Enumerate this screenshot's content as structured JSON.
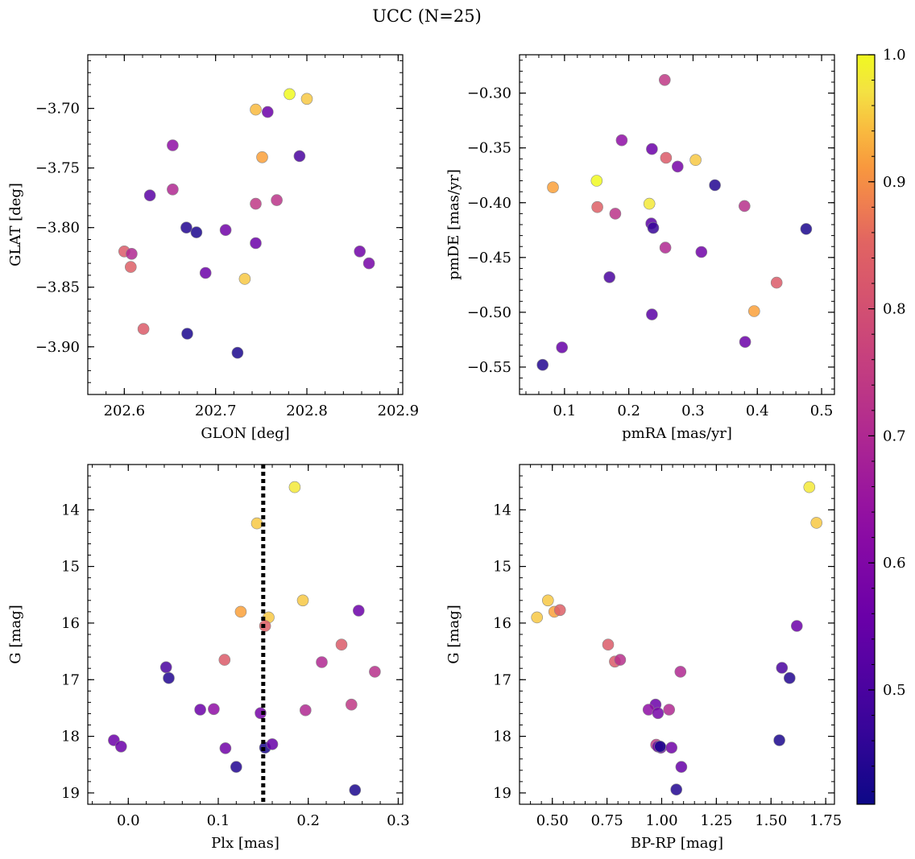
{
  "chart_data": [
    {
      "type": "scatter",
      "title": "UCC (N=25)",
      "xlabel": "GLON [deg]",
      "ylabel": "GLAT [deg]",
      "xlim": [
        202.56,
        202.905
      ],
      "ylim": [
        -3.94,
        -3.655
      ],
      "xticks": [
        202.6,
        202.7,
        202.8,
        202.9
      ],
      "xtick_labels": [
        "202.6",
        "202.7",
        "202.8",
        "202.9"
      ],
      "yticks": [
        -3.7,
        -3.75,
        -3.8,
        -3.85,
        -3.9
      ],
      "ytick_labels": [
        "−3.70",
        "−3.75",
        "−3.80",
        "−3.85",
        "−3.90"
      ],
      "x": [
        202.781,
        202.8,
        202.744,
        202.757,
        202.751,
        202.792,
        202.653,
        202.653,
        202.628,
        202.744,
        202.767,
        202.668,
        202.679,
        202.711,
        202.744,
        202.6,
        202.608,
        202.607,
        202.858,
        202.868,
        202.689,
        202.732,
        202.621,
        202.669,
        202.724
      ],
      "y": [
        -3.688,
        -3.692,
        -3.701,
        -3.703,
        -3.741,
        -3.74,
        -3.731,
        -3.768,
        -3.773,
        -3.78,
        -3.777,
        -3.8,
        -3.804,
        -3.802,
        -3.813,
        -3.82,
        -3.822,
        -3.833,
        -3.82,
        -3.83,
        -3.838,
        -3.843,
        -3.885,
        -3.889,
        -3.905
      ],
      "c": [
        1.0,
        0.95,
        0.94,
        0.56,
        0.92,
        0.5,
        0.63,
        0.7,
        0.53,
        0.74,
        0.73,
        0.44,
        0.43,
        0.57,
        0.56,
        0.83,
        0.7,
        0.84,
        0.57,
        0.58,
        0.56,
        0.95,
        0.83,
        0.43,
        0.43
      ]
    },
    {
      "type": "scatter",
      "xlabel": "pmRA [mas/yr]",
      "ylabel": "pmDE [mas/yr]",
      "xlim": [
        0.03,
        0.52
      ],
      "ylim": [
        -0.575,
        -0.265
      ],
      "xticks": [
        0.1,
        0.2,
        0.3,
        0.4,
        0.5
      ],
      "xtick_labels": [
        "0.1",
        "0.2",
        "0.3",
        "0.4",
        "0.5"
      ],
      "yticks": [
        -0.3,
        -0.35,
        -0.4,
        -0.45,
        -0.5,
        -0.55
      ],
      "ytick_labels": [
        "−0.30",
        "−0.35",
        "−0.40",
        "−0.45",
        "−0.50",
        "−0.55"
      ],
      "x": [
        0.256,
        0.189,
        0.236,
        0.258,
        0.304,
        0.276,
        0.082,
        0.15,
        0.232,
        0.151,
        0.179,
        0.334,
        0.38,
        0.235,
        0.238,
        0.257,
        0.313,
        0.476,
        0.17,
        0.43,
        0.395,
        0.236,
        0.381,
        0.096,
        0.066
      ],
      "y": [
        -0.288,
        -0.343,
        -0.351,
        -0.359,
        -0.361,
        -0.367,
        -0.386,
        -0.38,
        -0.401,
        -0.404,
        -0.41,
        -0.384,
        -0.403,
        -0.419,
        -0.423,
        -0.441,
        -0.445,
        -0.424,
        -0.468,
        -0.473,
        -0.499,
        -0.502,
        -0.527,
        -0.532,
        -0.548
      ],
      "c": [
        0.74,
        0.63,
        0.56,
        0.83,
        0.95,
        0.58,
        0.92,
        1.0,
        0.98,
        0.84,
        0.73,
        0.44,
        0.72,
        0.53,
        0.47,
        0.7,
        0.57,
        0.43,
        0.5,
        0.83,
        0.92,
        0.53,
        0.56,
        0.55,
        0.44
      ]
    },
    {
      "type": "scatter",
      "xlabel": "Plx [mas]",
      "ylabel": "G [mag]",
      "xlim": [
        -0.045,
        0.305
      ],
      "ylim": [
        19.2,
        13.2
      ],
      "xticks": [
        0.0,
        0.1,
        0.2,
        0.3
      ],
      "xtick_labels": [
        "0.0",
        "0.1",
        "0.2",
        "0.3"
      ],
      "yticks": [
        14,
        15,
        16,
        17,
        18,
        19
      ],
      "ytick_labels": [
        "14",
        "15",
        "16",
        "17",
        "18",
        "19"
      ],
      "vline": 0.15,
      "x": [
        0.185,
        0.143,
        0.194,
        0.125,
        0.156,
        0.152,
        0.256,
        0.107,
        0.237,
        0.274,
        0.215,
        0.042,
        0.045,
        0.08,
        0.095,
        0.147,
        0.197,
        0.248,
        -0.016,
        -0.008,
        0.108,
        0.152,
        0.16,
        0.12,
        0.252
      ],
      "y": [
        13.6,
        14.24,
        15.6,
        15.8,
        15.9,
        16.05,
        15.78,
        16.65,
        16.38,
        16.86,
        16.69,
        16.78,
        16.97,
        17.53,
        17.52,
        17.59,
        17.54,
        17.44,
        18.07,
        18.18,
        18.21,
        18.2,
        18.14,
        18.54,
        18.95
      ],
      "c": [
        0.98,
        0.95,
        0.95,
        0.92,
        0.95,
        0.84,
        0.56,
        0.83,
        0.83,
        0.72,
        0.7,
        0.5,
        0.44,
        0.56,
        0.63,
        0.58,
        0.7,
        0.74,
        0.56,
        0.56,
        0.57,
        0.43,
        0.55,
        0.44,
        0.43
      ]
    },
    {
      "type": "scatter",
      "xlabel": "BP-RP [mag]",
      "ylabel": "G [mag]",
      "xlim": [
        0.35,
        1.79
      ],
      "ylim": [
        19.2,
        13.2
      ],
      "xticks": [
        0.5,
        0.75,
        1.0,
        1.25,
        1.5,
        1.75
      ],
      "xtick_labels": [
        "0.50",
        "0.75",
        "1.00",
        "1.25",
        "1.50",
        "1.75"
      ],
      "yticks": [
        14,
        15,
        16,
        17,
        18,
        19
      ],
      "ytick_labels": [
        "14",
        "15",
        "16",
        "17",
        "18",
        "19"
      ],
      "x": [
        1.675,
        1.708,
        0.48,
        0.509,
        0.43,
        0.535,
        1.618,
        0.755,
        0.786,
        0.81,
        1.086,
        1.55,
        1.585,
        0.972,
        0.94,
        0.983,
        1.034,
        0.975,
        0.996,
        0.983,
        1.045,
        1.538,
        1.09,
        1.067,
        0.993
      ],
      "y": [
        13.6,
        14.23,
        15.6,
        15.8,
        15.9,
        15.77,
        16.05,
        16.38,
        16.68,
        16.65,
        16.86,
        16.79,
        16.97,
        17.44,
        17.53,
        17.59,
        17.53,
        18.15,
        18.2,
        18.18,
        18.2,
        18.07,
        18.54,
        18.94,
        18.18
      ]
    }
  ],
  "colorbar": {
    "range": [
      0.41,
      1.0
    ],
    "ticks": [
      0.5,
      0.6,
      0.7,
      0.8,
      0.9,
      1.0
    ],
    "tick_labels": [
      "0.5",
      "0.6",
      "0.7",
      "0.8",
      "0.9",
      "1.0"
    ],
    "colormap": "plasma"
  },
  "colors": {
    "plasma_low": "#0d0887",
    "plasma_high": "#f0f921",
    "marker_edge": "#888888",
    "vline": "#000000"
  }
}
